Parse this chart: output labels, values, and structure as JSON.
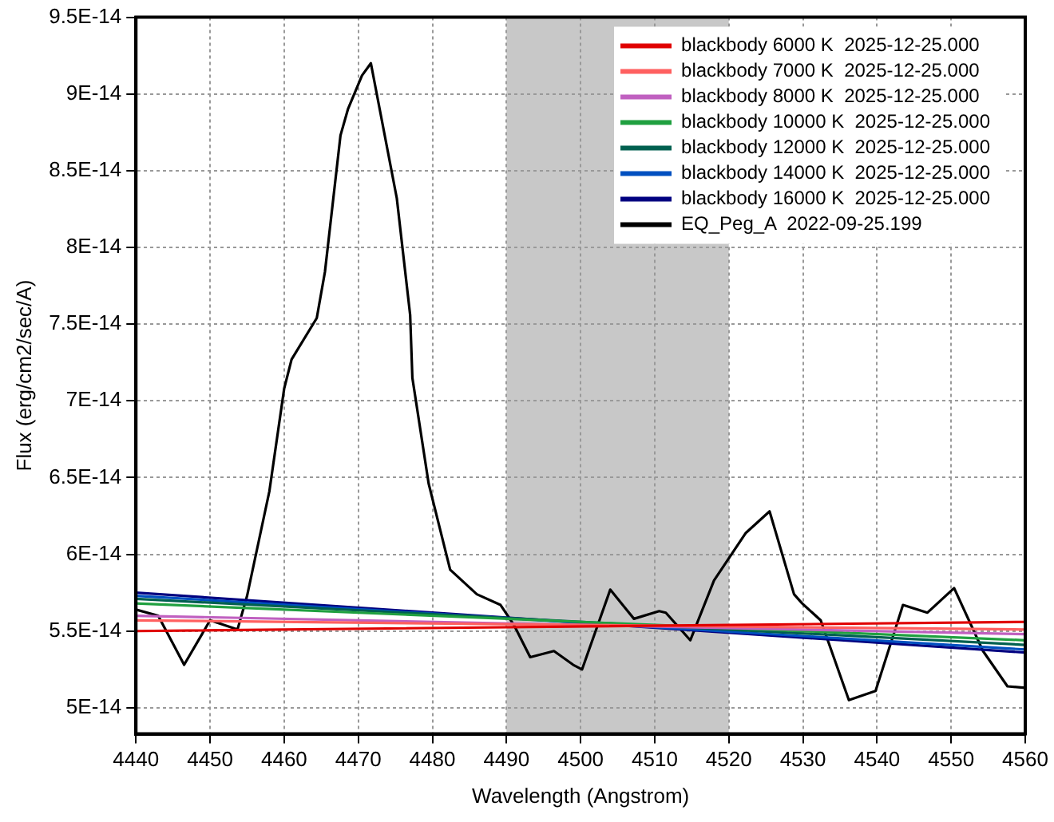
{
  "chart_data": {
    "type": "line",
    "xlabel": "Wavelength (Angstrom)",
    "ylabel": "Flux (erg/cm2/sec/A)",
    "xlim": [
      4440,
      4560
    ],
    "xticks": [
      4440,
      4450,
      4460,
      4470,
      4480,
      4490,
      4500,
      4510,
      4520,
      4530,
      4540,
      4550,
      4560
    ],
    "ylim": [
      4.83e-14,
      9.5e-14
    ],
    "yticks": [
      {
        "value": 5e-14,
        "label": "5E-14"
      },
      {
        "value": 5.5e-14,
        "label": "5.5E-14"
      },
      {
        "value": 6e-14,
        "label": "6E-14"
      },
      {
        "value": 6.5e-14,
        "label": "6.5E-14"
      },
      {
        "value": 7e-14,
        "label": "7E-14"
      },
      {
        "value": 7.5e-14,
        "label": "7.5E-14"
      },
      {
        "value": 8e-14,
        "label": "8E-14"
      },
      {
        "value": 8.5e-14,
        "label": "8.5E-14"
      },
      {
        "value": 9e-14,
        "label": "9E-14"
      },
      {
        "value": 9.5e-14,
        "label": "9.5E-14"
      }
    ],
    "grid": true,
    "legend": "top right",
    "marker": "none",
    "line_style": "solid",
    "bands": [
      {
        "axis": "x",
        "from": 4490,
        "to": 4520,
        "color": "#c8c8c8"
      }
    ],
    "series": [
      {
        "name": "blackbody 6000 K  2025-12-25.000",
        "color": "#e00000",
        "x": [
          4440,
          4560
        ],
        "values": [
          5.5e-14,
          5.56e-14
        ]
      },
      {
        "name": "blackbody 7000 K  2025-12-25.000",
        "color": "#ff6060",
        "x": [
          4440,
          4560
        ],
        "values": [
          5.57e-14,
          5.51e-14
        ]
      },
      {
        "name": "blackbody 8000 K  2025-12-25.000",
        "color": "#c060c0",
        "x": [
          4440,
          4560
        ],
        "values": [
          5.6e-14,
          5.48e-14
        ]
      },
      {
        "name": "blackbody 10000 K  2025-12-25.000",
        "color": "#20a040",
        "x": [
          4440,
          4560
        ],
        "values": [
          5.68e-14,
          5.44e-14
        ]
      },
      {
        "name": "blackbody 12000 K  2025-12-25.000",
        "color": "#006050",
        "x": [
          4440,
          4560
        ],
        "values": [
          5.71e-14,
          5.41e-14
        ]
      },
      {
        "name": "blackbody 14000 K  2025-12-25.000",
        "color": "#0050c0",
        "x": [
          4440,
          4560
        ],
        "values": [
          5.73e-14,
          5.38e-14
        ]
      },
      {
        "name": "blackbody 16000 K  2025-12-25.000",
        "color": "#000080",
        "x": [
          4440,
          4560
        ],
        "values": [
          5.75e-14,
          5.36e-14
        ]
      },
      {
        "name": "EQ_Peg_A  2022-09-25.199",
        "color": "#000000",
        "x": [
          4440,
          4443,
          4446.5,
          4450,
          4453.7,
          4455,
          4458,
          4460,
          4461,
          4464.4,
          4465.5,
          4467.6,
          4468.6,
          4470.5,
          4471.7,
          4475.2,
          4477,
          4477.3,
          4479.5,
          4482.4,
          4486,
          4489.2,
          4491,
          4493.2,
          4496.4,
          4499,
          4500.2,
          4504,
          4507.2,
          4510.6,
          4511.5,
          4514.8,
          4518,
          4522.3,
          4525.5,
          4528.8,
          4529.9,
          4532.4,
          4536.2,
          4539.8,
          4543.5,
          4546.8,
          4550.4,
          4554.3,
          4557.6,
          4560
        ],
        "values": [
          5.64e-14,
          5.6e-14,
          5.28e-14,
          5.57e-14,
          5.51e-14,
          5.73e-14,
          6.41e-14,
          7.08e-14,
          7.27e-14,
          7.54e-14,
          7.84e-14,
          8.73e-14,
          8.9e-14,
          9.12e-14,
          9.2e-14,
          8.32e-14,
          7.56e-14,
          7.15e-14,
          6.46e-14,
          5.9e-14,
          5.74e-14,
          5.67e-14,
          5.54e-14,
          5.33e-14,
          5.37e-14,
          5.28e-14,
          5.25e-14,
          5.77e-14,
          5.58e-14,
          5.63e-14,
          5.62e-14,
          5.44e-14,
          5.83e-14,
          6.14e-14,
          6.28e-14,
          5.74e-14,
          5.68e-14,
          5.57e-14,
          5.05e-14,
          5.11e-14,
          5.67e-14,
          5.62e-14,
          5.78e-14,
          5.37e-14,
          5.14e-14,
          5.13e-14
        ]
      }
    ]
  }
}
